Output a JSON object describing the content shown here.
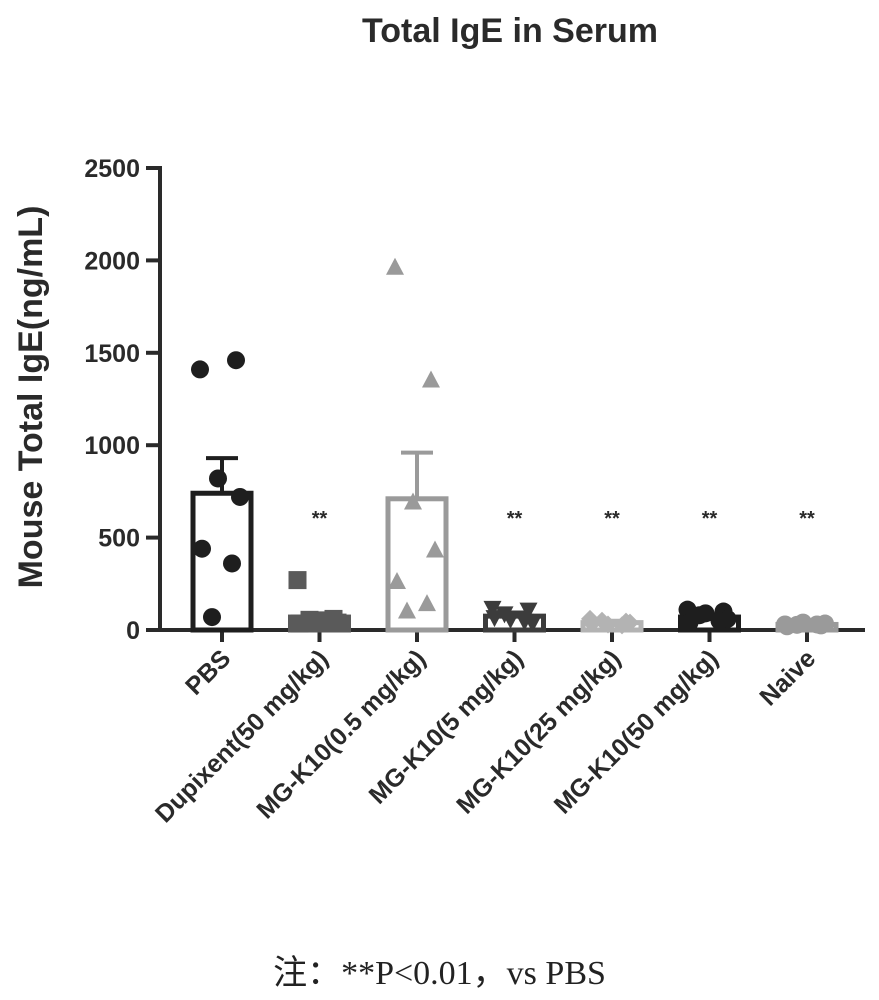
{
  "chart_data": {
    "type": "bar",
    "title": "Total IgE in Serum",
    "ylabel": "Mouse Total IgE(ng/mL)",
    "xlabel": "",
    "ylim": [
      0,
      2500
    ],
    "yticks": [
      "0",
      "500",
      "1000",
      "1500",
      "2000",
      "2500"
    ],
    "categories": [
      "PBS",
      "Dupixent(50 mg/kg)",
      "MG-K10(0.5 mg/kg)",
      "MG-K10(5 mg/kg)",
      "MG-K10(25 mg/kg)",
      "MG-K10(50 mg/kg)",
      "Naive"
    ],
    "values": [
      740,
      70,
      710,
      75,
      40,
      70,
      30
    ],
    "error_upper": [
      930,
      90,
      960,
      95,
      50,
      85,
      38
    ],
    "significance": [
      "",
      "**",
      "",
      "**",
      "**",
      "**",
      "**"
    ],
    "points": [
      [
        1410,
        1460,
        820,
        720,
        440,
        360,
        70
      ],
      [
        270,
        60,
        45,
        40,
        35,
        50,
        55
      ],
      [
        1960,
        1350,
        690,
        430,
        260,
        140,
        100
      ],
      [
        120,
        110,
        60,
        40,
        70,
        50,
        90
      ],
      [
        60,
        45,
        30,
        40,
        35,
        25,
        50
      ],
      [
        110,
        100,
        90,
        60,
        40,
        50,
        80
      ],
      [
        30,
        25,
        40,
        35,
        20,
        30,
        28
      ]
    ],
    "markers": [
      "circle",
      "square",
      "triangle-up",
      "triangle-down",
      "diamond",
      "circle",
      "circle"
    ],
    "colors": {
      "bar_edges": [
        "#1e1e1e",
        "#5a5a5a",
        "#9a9a9a",
        "#3c3c3c",
        "#b3b3b3",
        "#1e1e1e",
        "#9a9a9a"
      ],
      "points": [
        "#1e1e1e",
        "#5a5a5a",
        "#9a9a9a",
        "#3c3c3c",
        "#b3b3b3",
        "#1e1e1e",
        "#9a9a9a"
      ],
      "axis": "#2a2a2a"
    },
    "grid": false
  },
  "footnote": "注：**P<0.01，vs PBS"
}
